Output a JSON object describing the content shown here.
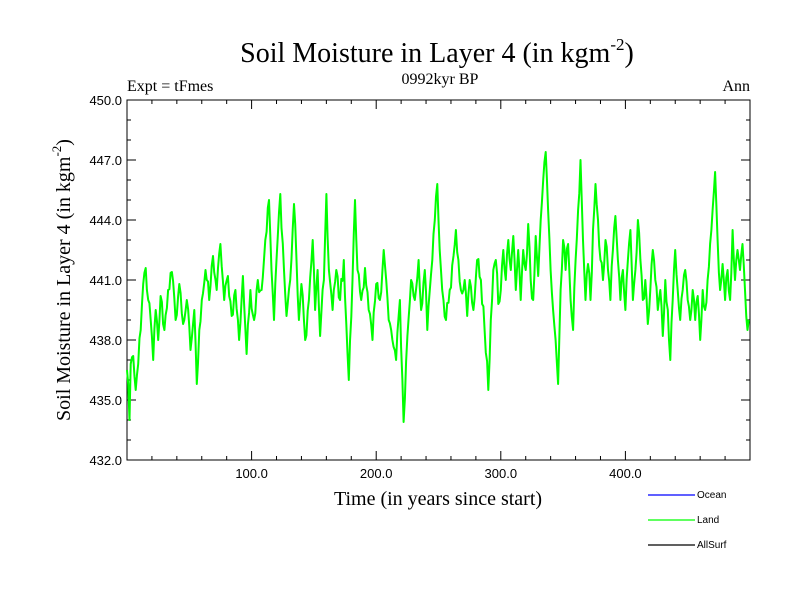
{
  "chart_data": {
    "type": "line",
    "title": "Soil Moisture in Layer 4 (in kgm",
    "title_sup": "-2",
    "title_close": ")",
    "subtitle_left": "Expt = tFmes",
    "subtitle_center": "0992kyr BP",
    "subtitle_right": "Ann",
    "xlabel": "Time (in years since start)",
    "ylabel": "Soil Moisture in Layer 4 (in kgm",
    "ylabel_sup": "-2",
    "ylabel_close": ")",
    "xlim": [
      0,
      500
    ],
    "ylim": [
      432.0,
      450.0
    ],
    "xticks": [
      100,
      200,
      300,
      400
    ],
    "xtick_labels": [
      "100.0",
      "200.0",
      "300.0",
      "400.0"
    ],
    "yticks": [
      432,
      435,
      438,
      441,
      444,
      447,
      450
    ],
    "ytick_labels": [
      "432.0",
      "435.0",
      "438.0",
      "441.0",
      "444.0",
      "447.0",
      "450.0"
    ],
    "legend": [
      {
        "name": "Ocean",
        "color": "#0000ff"
      },
      {
        "name": "Land",
        "color": "#00ff00"
      },
      {
        "name": "AllSurf",
        "color": "#000000"
      }
    ],
    "series": [
      {
        "name": "Land",
        "color": "#00ff00",
        "anchors": [
          [
            0,
            436.5
          ],
          [
            1,
            435.8
          ],
          [
            2,
            434.0
          ],
          [
            3,
            436.8
          ],
          [
            5,
            437.2
          ],
          [
            7,
            435.5
          ],
          [
            9,
            436.8
          ],
          [
            11,
            438.5
          ],
          [
            13,
            440.8
          ],
          [
            15,
            441.6
          ],
          [
            17,
            440.0
          ],
          [
            19,
            439.0
          ],
          [
            21,
            437.0
          ],
          [
            23,
            439.5
          ],
          [
            25,
            438.0
          ],
          [
            27,
            440.2
          ],
          [
            30,
            438.5
          ],
          [
            33,
            440.5
          ],
          [
            36,
            441.4
          ],
          [
            39,
            439.0
          ],
          [
            42,
            440.8
          ],
          [
            45,
            438.8
          ],
          [
            48,
            440.0
          ],
          [
            51,
            437.5
          ],
          [
            54,
            439.5
          ],
          [
            56,
            435.8
          ],
          [
            58,
            438.5
          ],
          [
            60,
            440.0
          ],
          [
            63,
            441.5
          ],
          [
            66,
            440.0
          ],
          [
            69,
            442.2
          ],
          [
            72,
            440.5
          ],
          [
            75,
            442.8
          ],
          [
            78,
            440.0
          ],
          [
            81,
            441.2
          ],
          [
            84,
            439.2
          ],
          [
            87,
            440.5
          ],
          [
            90,
            438.0
          ],
          [
            93,
            441.2
          ],
          [
            96,
            437.3
          ],
          [
            99,
            440.5
          ],
          [
            102,
            439.0
          ],
          [
            105,
            441.0
          ],
          [
            108,
            440.5
          ],
          [
            111,
            443.0
          ],
          [
            114,
            445.0
          ],
          [
            116,
            441.5
          ],
          [
            118,
            439.0
          ],
          [
            120,
            442.0
          ],
          [
            123,
            445.3
          ],
          [
            126,
            441.5
          ],
          [
            128,
            439.2
          ],
          [
            131,
            441.0
          ],
          [
            134,
            444.8
          ],
          [
            136,
            442.0
          ],
          [
            138,
            439.0
          ],
          [
            140,
            440.8
          ],
          [
            143,
            438.0
          ],
          [
            146,
            440.0
          ],
          [
            149,
            443.0
          ],
          [
            151,
            439.5
          ],
          [
            153,
            441.5
          ],
          [
            155,
            438.2
          ],
          [
            158,
            441.0
          ],
          [
            160,
            445.3
          ],
          [
            162,
            441.5
          ],
          [
            165,
            439.5
          ],
          [
            168,
            441.5
          ],
          [
            171,
            440.0
          ],
          [
            174,
            442.0
          ],
          [
            176,
            438.8
          ],
          [
            178,
            436.0
          ],
          [
            181,
            441.0
          ],
          [
            183,
            445.0
          ],
          [
            185,
            441.5
          ],
          [
            188,
            440.0
          ],
          [
            191,
            441.6
          ],
          [
            194,
            439.5
          ],
          [
            197,
            438.0
          ],
          [
            200,
            440.8
          ],
          [
            203,
            440.0
          ],
          [
            206,
            442.5
          ],
          [
            208,
            441.0
          ],
          [
            210,
            439.0
          ],
          [
            213,
            438.0
          ],
          [
            216,
            437.0
          ],
          [
            219,
            440.0
          ],
          [
            222,
            433.9
          ],
          [
            225,
            438.2
          ],
          [
            228,
            441.0
          ],
          [
            231,
            440.0
          ],
          [
            234,
            442.0
          ],
          [
            236,
            439.5
          ],
          [
            239,
            441.5
          ],
          [
            241,
            438.5
          ],
          [
            243,
            440.5
          ],
          [
            245,
            442.0
          ],
          [
            247,
            444.0
          ],
          [
            249,
            445.8
          ],
          [
            251,
            442.5
          ],
          [
            253,
            440.5
          ],
          [
            256,
            439.0
          ],
          [
            259,
            440.5
          ],
          [
            262,
            442.2
          ],
          [
            264,
            443.5
          ],
          [
            266,
            442.0
          ],
          [
            268,
            440.5
          ],
          [
            271,
            441.0
          ],
          [
            273,
            439.2
          ],
          [
            275,
            441.0
          ],
          [
            278,
            439.5
          ],
          [
            281,
            442.0
          ],
          [
            284,
            441.0
          ],
          [
            287,
            438.5
          ],
          [
            290,
            435.5
          ],
          [
            292,
            439.0
          ],
          [
            294,
            441.5
          ],
          [
            296,
            442.0
          ],
          [
            298,
            439.8
          ],
          [
            300,
            440.5
          ],
          [
            302,
            442.5
          ],
          [
            304,
            441.0
          ],
          [
            306,
            443.0
          ],
          [
            308,
            441.5
          ],
          [
            310,
            443.2
          ],
          [
            312,
            440.5
          ],
          [
            314,
            442.5
          ],
          [
            316,
            440.0
          ],
          [
            318,
            442.5
          ],
          [
            320,
            441.5
          ],
          [
            322,
            443.8
          ],
          [
            324,
            441.0
          ],
          [
            326,
            440.0
          ],
          [
            328,
            443.2
          ],
          [
            330,
            441.2
          ],
          [
            332,
            444.0
          ],
          [
            334,
            446.0
          ],
          [
            336,
            447.4
          ],
          [
            338,
            444.5
          ],
          [
            340,
            441.5
          ],
          [
            342,
            439.5
          ],
          [
            344,
            438.0
          ],
          [
            346,
            435.8
          ],
          [
            348,
            440.5
          ],
          [
            350,
            443.0
          ],
          [
            352,
            441.5
          ],
          [
            354,
            442.8
          ],
          [
            356,
            440.0
          ],
          [
            358,
            438.5
          ],
          [
            360,
            442.0
          ],
          [
            362,
            444.5
          ],
          [
            364,
            447.0
          ],
          [
            366,
            443.0
          ],
          [
            368,
            440.0
          ],
          [
            370,
            441.8
          ],
          [
            372,
            440.0
          ],
          [
            374,
            443.5
          ],
          [
            376,
            445.8
          ],
          [
            378,
            444.0
          ],
          [
            380,
            442.0
          ],
          [
            382,
            441.0
          ],
          [
            384,
            443.0
          ],
          [
            386,
            441.5
          ],
          [
            388,
            440.0
          ],
          [
            390,
            442.5
          ],
          [
            392,
            444.2
          ],
          [
            394,
            442.0
          ],
          [
            396,
            440.0
          ],
          [
            398,
            441.5
          ],
          [
            400,
            439.5
          ],
          [
            402,
            442.0
          ],
          [
            404,
            443.5
          ],
          [
            406,
            440.0
          ],
          [
            408,
            441.5
          ],
          [
            410,
            444.0
          ],
          [
            412,
            442.0
          ],
          [
            414,
            440.0
          ],
          [
            416,
            441.0
          ],
          [
            418,
            438.8
          ],
          [
            420,
            440.5
          ],
          [
            422,
            442.5
          ],
          [
            424,
            441.0
          ],
          [
            426,
            439.5
          ],
          [
            428,
            440.5
          ],
          [
            430,
            438.2
          ],
          [
            432,
            441.0
          ],
          [
            434,
            439.5
          ],
          [
            436,
            437.0
          ],
          [
            438,
            440.0
          ],
          [
            440,
            442.5
          ],
          [
            442,
            440.5
          ],
          [
            444,
            439.0
          ],
          [
            446,
            440.5
          ],
          [
            448,
            441.5
          ],
          [
            450,
            440.0
          ],
          [
            452,
            439.0
          ],
          [
            454,
            440.5
          ],
          [
            456,
            439.0
          ],
          [
            458,
            440.2
          ],
          [
            460,
            438.0
          ],
          [
            462,
            440.5
          ],
          [
            464,
            439.5
          ],
          [
            466,
            441.0
          ],
          [
            468,
            442.8
          ],
          [
            470,
            444.5
          ],
          [
            472,
            446.4
          ],
          [
            474,
            443.0
          ],
          [
            476,
            440.5
          ],
          [
            478,
            441.8
          ],
          [
            480,
            440.0
          ],
          [
            482,
            441.5
          ],
          [
            484,
            440.0
          ],
          [
            486,
            443.5
          ],
          [
            488,
            441.0
          ],
          [
            490,
            442.5
          ],
          [
            492,
            441.5
          ],
          [
            494,
            442.8
          ],
          [
            496,
            440.5
          ],
          [
            498,
            438.5
          ],
          [
            499,
            439.0
          ]
        ]
      },
      {
        "name": "Ocean",
        "color": "#0000ff",
        "anchors": []
      },
      {
        "name": "AllSurf",
        "color": "#000000",
        "anchors": []
      }
    ]
  }
}
